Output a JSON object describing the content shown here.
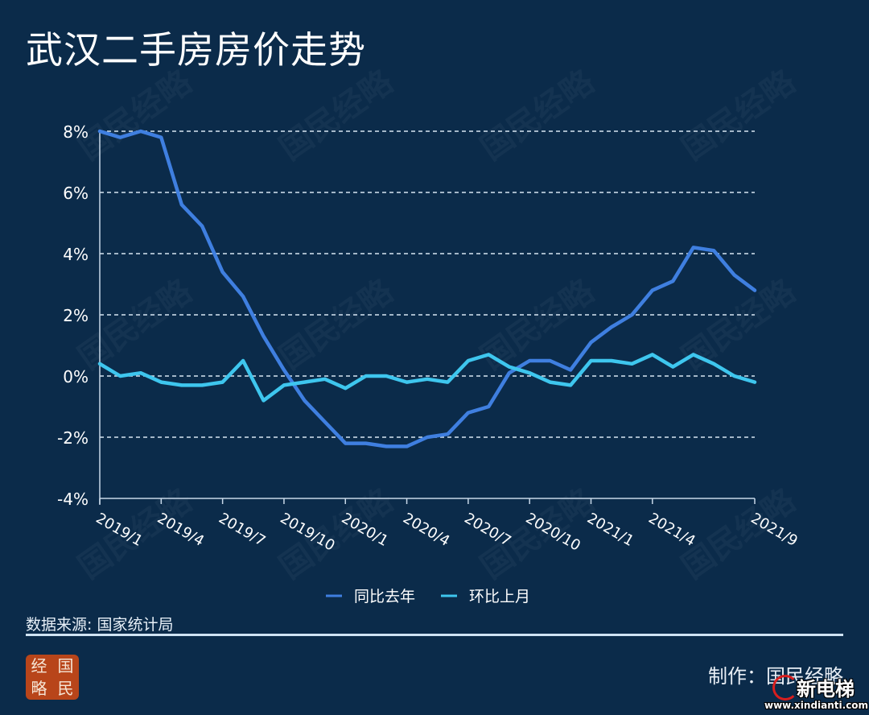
{
  "header": {
    "title": "武汉二手房房价走势"
  },
  "colors": {
    "background": "#0b2b4a",
    "yoy_line": "#3f7fe0",
    "mom_line": "#3ec6ee",
    "grid": "#d8e6f2",
    "axis": "#c7d8e8"
  },
  "chart_data": {
    "type": "line",
    "title": "武汉二手房房价走势",
    "xlabel": "",
    "ylabel": "",
    "ylim": [
      -4,
      8
    ],
    "yticks": [
      "-4%",
      "-2%",
      "0%",
      "2%",
      "4%",
      "6%",
      "8%"
    ],
    "ytick_values": [
      -4,
      -2,
      0,
      2,
      4,
      6,
      8
    ],
    "xtick_labels": [
      "2019/1",
      "2019/4",
      "2019/7",
      "2019/10",
      "2020/1",
      "2020/4",
      "2020/7",
      "2020/10",
      "2021/1",
      "2021/4",
      "2021/9"
    ],
    "xtick_index": [
      0,
      3,
      6,
      9,
      12,
      15,
      18,
      21,
      24,
      27,
      32
    ],
    "grid": true,
    "legend_position": "bottom",
    "x": [
      "2019/1",
      "2019/2",
      "2019/3",
      "2019/4",
      "2019/5",
      "2019/6",
      "2019/7",
      "2019/8",
      "2019/9",
      "2019/10",
      "2019/11",
      "2019/12",
      "2020/1",
      "2020/2",
      "2020/3",
      "2020/4",
      "2020/5",
      "2020/6",
      "2020/7",
      "2020/8",
      "2020/9",
      "2020/10",
      "2020/11",
      "2020/12",
      "2021/1",
      "2021/2",
      "2021/3",
      "2021/4",
      "2021/5",
      "2021/6",
      "2021/7",
      "2021/8",
      "2021/9"
    ],
    "series": [
      {
        "name": "同比去年",
        "values": [
          8.0,
          7.8,
          8.0,
          7.8,
          5.6,
          4.9,
          3.4,
          2.6,
          1.3,
          0.2,
          -0.8,
          -1.5,
          -2.2,
          -2.2,
          -2.3,
          -2.3,
          -2.0,
          -1.9,
          -1.2,
          -1.0,
          0.1,
          0.5,
          0.5,
          0.2,
          1.1,
          1.6,
          2.0,
          2.8,
          3.1,
          4.2,
          4.1,
          3.3,
          2.8
        ]
      },
      {
        "name": "环比上月",
        "values": [
          0.4,
          0.0,
          0.1,
          -0.2,
          -0.3,
          -0.3,
          -0.2,
          0.5,
          -0.8,
          -0.3,
          -0.2,
          -0.1,
          -0.4,
          0.0,
          0.0,
          -0.2,
          -0.1,
          -0.2,
          0.5,
          0.7,
          0.3,
          0.1,
          -0.2,
          -0.3,
          0.5,
          0.5,
          0.4,
          0.7,
          0.3,
          0.7,
          0.4,
          0.0,
          -0.2
        ]
      }
    ]
  },
  "legend": {
    "items": [
      {
        "label": "同比去年"
      },
      {
        "label": "环比上月"
      }
    ]
  },
  "footer": {
    "source": "数据来源: 国家统计局",
    "credit": "制作：国民经略",
    "logo_chars": [
      "经",
      "国",
      "略",
      "民"
    ],
    "watermark_text": "国民经略",
    "stamp_name": "新电梯",
    "stamp_url": "www.xindianti.com"
  }
}
